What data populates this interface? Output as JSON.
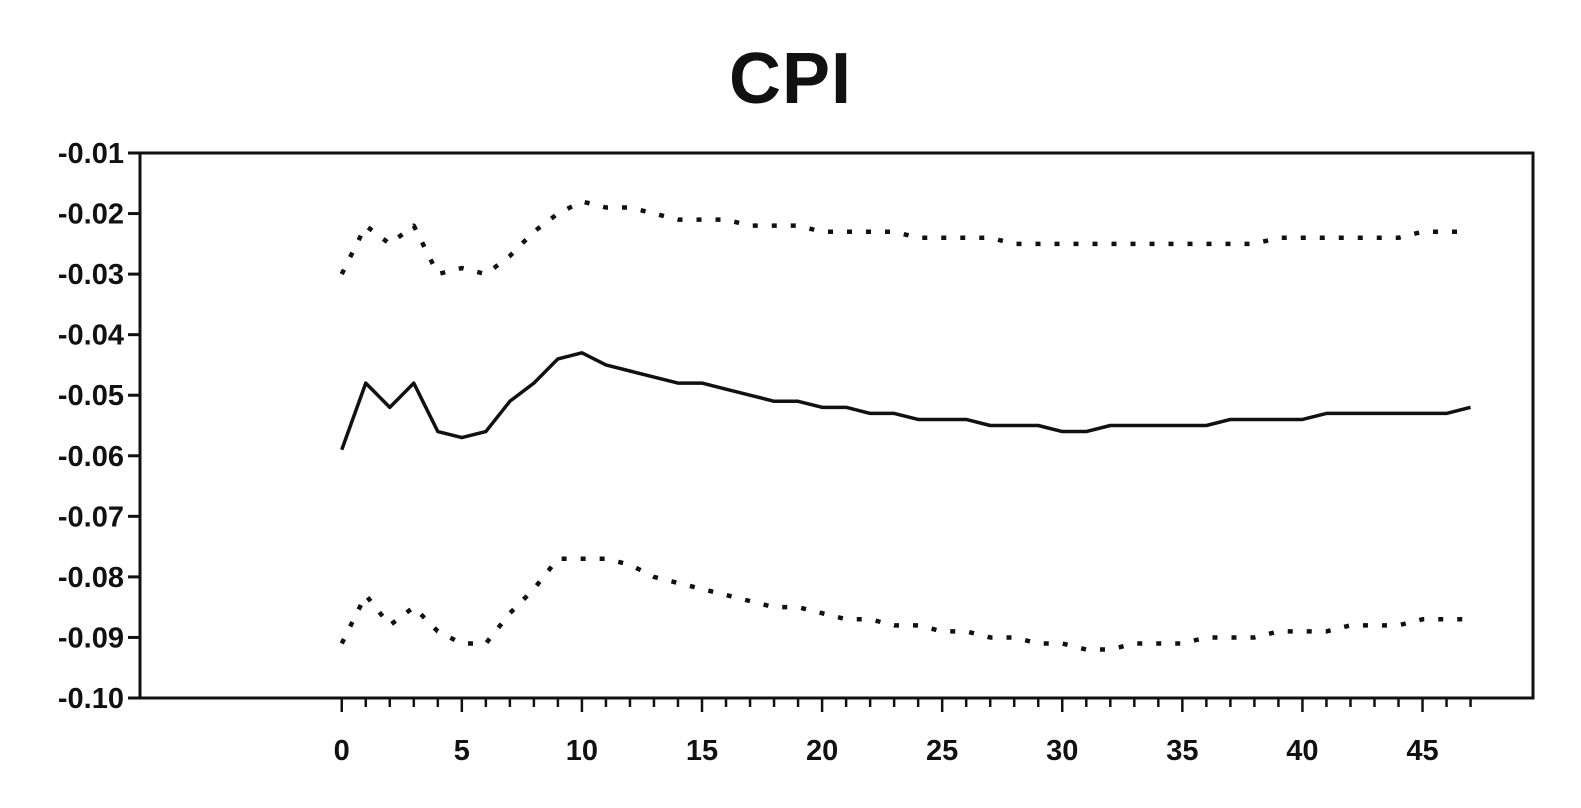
{
  "chart_data": {
    "type": "line",
    "title": "CPI",
    "xlabel": "",
    "ylabel": "",
    "xlim": [
      -8.4,
      49.6
    ],
    "ylim": [
      -0.1,
      -0.01
    ],
    "xticks": [
      0,
      5,
      10,
      15,
      20,
      25,
      30,
      35,
      40,
      45
    ],
    "yticks": [
      -0.01,
      -0.02,
      -0.03,
      -0.04,
      -0.05,
      -0.06,
      -0.07,
      -0.08,
      -0.09,
      -0.1
    ],
    "ytick_labels": [
      "-0.01",
      "-0.02",
      "-0.03",
      "-0.04",
      "-0.05",
      "-0.06",
      "-0.07",
      "-0.08",
      "-0.09",
      "-0.10"
    ],
    "grid": false,
    "x": [
      0,
      1,
      2,
      3,
      4,
      5,
      6,
      7,
      8,
      9,
      10,
      11,
      12,
      13,
      14,
      15,
      16,
      17,
      18,
      19,
      20,
      21,
      22,
      23,
      24,
      25,
      26,
      27,
      28,
      29,
      30,
      31,
      32,
      33,
      34,
      35,
      36,
      37,
      38,
      39,
      40,
      41,
      42,
      43,
      44,
      45,
      46,
      47
    ],
    "series": [
      {
        "style": "dotted",
        "values": [
          -0.03,
          -0.022,
          -0.025,
          -0.022,
          -0.03,
          -0.029,
          -0.03,
          -0.027,
          -0.023,
          -0.02,
          -0.018,
          -0.019,
          -0.019,
          -0.02,
          -0.021,
          -0.021,
          -0.021,
          -0.022,
          -0.022,
          -0.022,
          -0.023,
          -0.023,
          -0.023,
          -0.023,
          -0.024,
          -0.024,
          -0.024,
          -0.024,
          -0.025,
          -0.025,
          -0.025,
          -0.025,
          -0.025,
          -0.025,
          -0.025,
          -0.025,
          -0.025,
          -0.025,
          -0.025,
          -0.024,
          -0.024,
          -0.024,
          -0.024,
          -0.024,
          -0.024,
          -0.023,
          -0.023,
          -0.023
        ]
      },
      {
        "style": "solid",
        "values": [
          -0.059,
          -0.048,
          -0.052,
          -0.048,
          -0.056,
          -0.057,
          -0.056,
          -0.051,
          -0.048,
          -0.044,
          -0.043,
          -0.045,
          -0.046,
          -0.047,
          -0.048,
          -0.048,
          -0.049,
          -0.05,
          -0.051,
          -0.051,
          -0.052,
          -0.052,
          -0.053,
          -0.053,
          -0.054,
          -0.054,
          -0.054,
          -0.055,
          -0.055,
          -0.055,
          -0.056,
          -0.056,
          -0.055,
          -0.055,
          -0.055,
          -0.055,
          -0.055,
          -0.054,
          -0.054,
          -0.054,
          -0.054,
          -0.053,
          -0.053,
          -0.053,
          -0.053,
          -0.053,
          -0.053,
          -0.052
        ]
      },
      {
        "style": "dotted",
        "values": [
          -0.091,
          -0.083,
          -0.088,
          -0.085,
          -0.089,
          -0.091,
          -0.091,
          -0.086,
          -0.082,
          -0.077,
          -0.077,
          -0.077,
          -0.078,
          -0.08,
          -0.081,
          -0.082,
          -0.083,
          -0.084,
          -0.085,
          -0.085,
          -0.086,
          -0.087,
          -0.087,
          -0.088,
          -0.088,
          -0.089,
          -0.089,
          -0.09,
          -0.09,
          -0.091,
          -0.091,
          -0.092,
          -0.092,
          -0.091,
          -0.091,
          -0.091,
          -0.09,
          -0.09,
          -0.09,
          -0.089,
          -0.089,
          -0.089,
          -0.088,
          -0.088,
          -0.088,
          -0.087,
          -0.087,
          -0.087
        ]
      }
    ]
  }
}
